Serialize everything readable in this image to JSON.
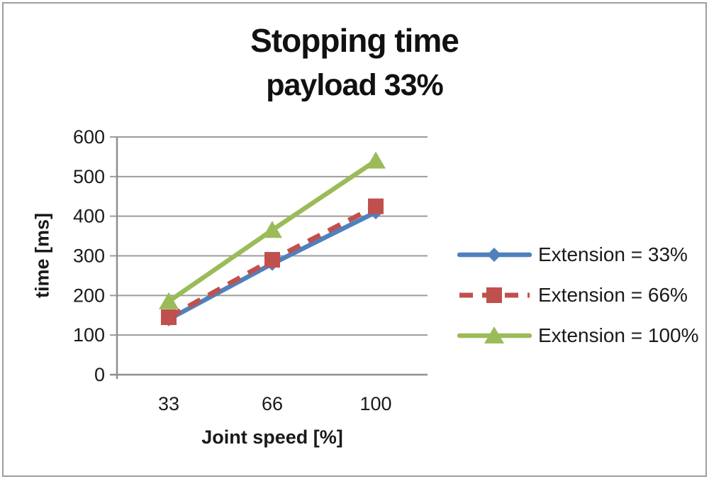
{
  "chart_data": {
    "type": "line",
    "title": "Stopping time",
    "subtitle": "payload 33%",
    "xlabel": "Joint speed [%]",
    "ylabel": "time [ms]",
    "categories": [
      "33",
      "66",
      "100"
    ],
    "y_ticks": [
      0,
      100,
      200,
      300,
      400,
      500,
      600
    ],
    "ylim": [
      0,
      600
    ],
    "grid": true,
    "legend_position": "right",
    "series": [
      {
        "name": "Extension = 33%",
        "values": [
          140,
          280,
          410
        ],
        "color": "#4F81BD",
        "marker": "diamond",
        "dash": "solid"
      },
      {
        "name": "Extension = 66%",
        "values": [
          145,
          290,
          425
        ],
        "color": "#C0504D",
        "marker": "square",
        "dash": "dashed"
      },
      {
        "name": "Extension = 100%",
        "values": [
          185,
          365,
          540
        ],
        "color": "#9BBB59",
        "marker": "triangle",
        "dash": "solid"
      }
    ],
    "colors": {
      "gridline": "#9c9c9c",
      "axis": "#8f8f8f",
      "text": "#1a1a1a",
      "background": "#ffffff",
      "frame_border": "#9e9e9e"
    }
  }
}
